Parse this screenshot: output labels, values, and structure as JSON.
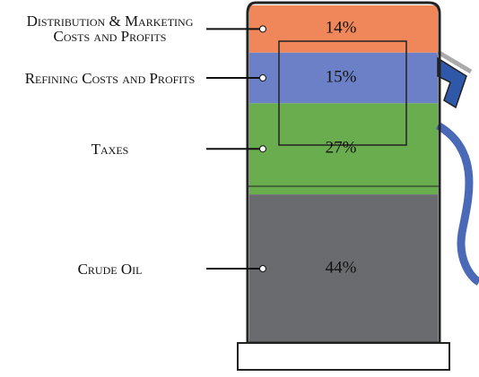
{
  "chart_data": {
    "type": "stacked_column",
    "series": [
      {
        "name": "Distribution & Marketing Costs and Profits",
        "color": "#f0875a",
        "values": [
          14
        ],
        "value_labels": [
          "14%"
        ]
      },
      {
        "name": "Refining Costs and Profits",
        "color": "#6b80c6",
        "values": [
          15
        ],
        "value_labels": [
          "15%"
        ]
      },
      {
        "name": "Taxes",
        "color": "#6aad4f",
        "values": [
          27
        ],
        "value_labels": [
          "27%"
        ]
      },
      {
        "name": "Crude Oil",
        "color": "#6a6b6e",
        "values": [
          44
        ],
        "value_labels": [
          "44%"
        ]
      }
    ]
  }
}
